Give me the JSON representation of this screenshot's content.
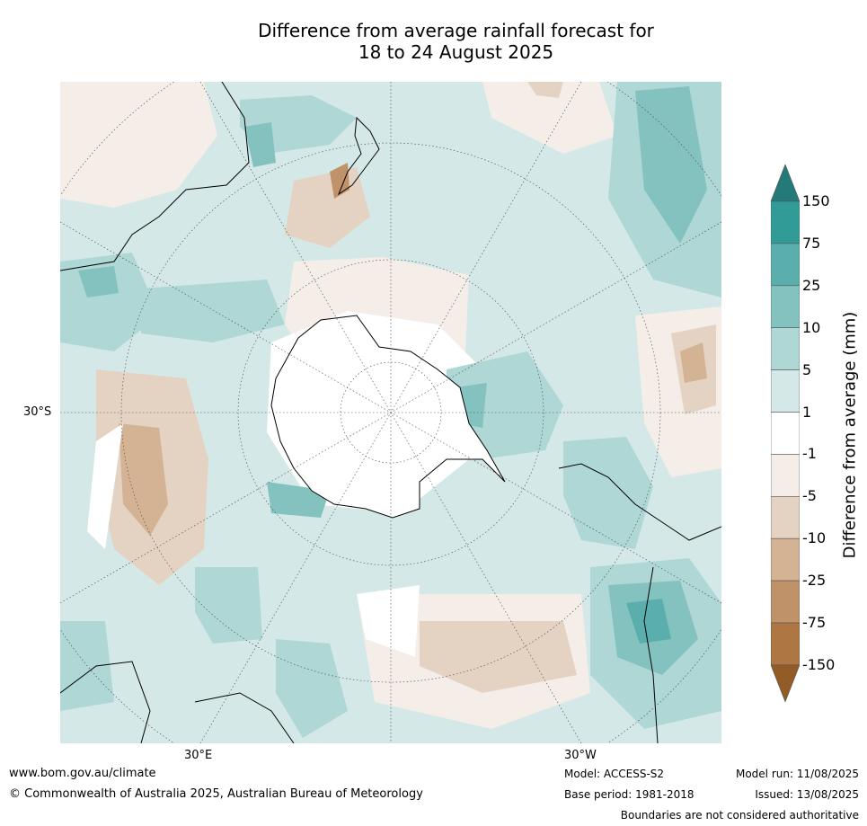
{
  "title_line1": "Difference from average rainfall forecast for",
  "title_line2": "18 to 24 August 2025",
  "map": {
    "projection": "polar-stereographic-south",
    "labels": {
      "lat": "30°S",
      "lon_east": "30°E",
      "lon_west": "30°W"
    }
  },
  "colorbar": {
    "title": "Difference from average (mm)",
    "ticks": [
      "150",
      "75",
      "25",
      "10",
      "5",
      "1",
      "-1",
      "-5",
      "-10",
      "-25",
      "-75",
      "-150"
    ],
    "bands": [
      {
        "range": "> 150",
        "color": "#237a78"
      },
      {
        "range": "75 to 150",
        "color": "#319b98"
      },
      {
        "range": "25 to 75",
        "color": "#5aaeac"
      },
      {
        "range": "10 to 25",
        "color": "#84c2c0"
      },
      {
        "range": "5 to 10",
        "color": "#aed7d5"
      },
      {
        "range": "1 to 5",
        "color": "#d4e9e7"
      },
      {
        "range": "-1 to 1",
        "color": "#ffffff"
      },
      {
        "range": "-5 to -1",
        "color": "#f4ede8"
      },
      {
        "range": "-10 to -5",
        "color": "#e4d3c3"
      },
      {
        "range": "-25 to -10",
        "color": "#d3b394"
      },
      {
        "range": "-75 to -25",
        "color": "#c0926a"
      },
      {
        "range": "-150 to -75",
        "color": "#ad7643"
      },
      {
        "range": "< -150",
        "color": "#935c27"
      }
    ]
  },
  "footer": {
    "url": "www.bom.gov.au/climate",
    "copyright": "© Commonwealth of Australia 2025, Australian Bureau of Meteorology",
    "model": "Model: ACCESS-S2",
    "base_period": "Base period: 1981-2018",
    "model_run": "Model run: 11/08/2025",
    "issued": "Issued: 13/08/2025",
    "disclaimer": "Boundaries are not considered authoritative"
  }
}
